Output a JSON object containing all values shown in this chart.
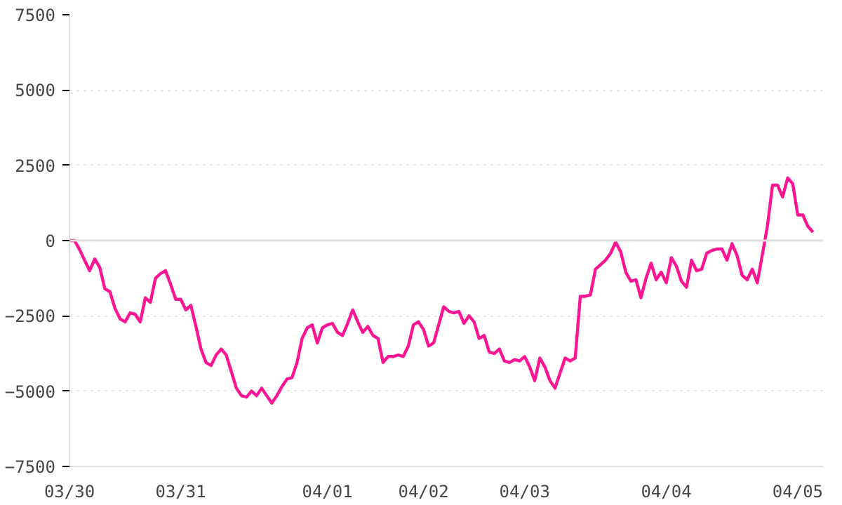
{
  "chart_data": {
    "type": "line",
    "categories": [
      "03/30",
      null,
      null,
      null,
      null,
      null,
      null,
      null,
      null,
      null,
      null,
      null,
      null,
      null,
      null,
      null,
      null,
      null,
      null,
      null,
      null,
      null,
      "03/31",
      null,
      null,
      null,
      null,
      null,
      null,
      null,
      null,
      null,
      null,
      null,
      null,
      null,
      null,
      null,
      null,
      null,
      null,
      null,
      null,
      null,
      null,
      null,
      null,
      null,
      null,
      null,
      null,
      "04/01",
      null,
      null,
      null,
      null,
      null,
      null,
      null,
      null,
      null,
      null,
      null,
      null,
      null,
      null,
      null,
      null,
      null,
      null,
      "04/02",
      null,
      null,
      null,
      null,
      null,
      null,
      null,
      null,
      null,
      null,
      null,
      null,
      null,
      null,
      null,
      null,
      null,
      null,
      null,
      "04/03",
      null,
      null,
      null,
      null,
      null,
      null,
      null,
      null,
      null,
      null,
      null,
      null,
      null,
      null,
      null,
      null,
      null,
      null,
      null,
      null,
      null,
      null,
      null,
      null,
      null,
      null,
      null,
      "04/04",
      null,
      null,
      null,
      null,
      null,
      null,
      null,
      null,
      null,
      null,
      null,
      null,
      null,
      null,
      null,
      null,
      null,
      null,
      null,
      null,
      null,
      null,
      null,
      null,
      null,
      "04/05",
      null,
      null,
      null
    ],
    "series": [
      {
        "color": "#ff1493",
        "values": [
          0,
          0,
          -300,
          -660,
          -1000,
          -610,
          -900,
          -1600,
          -1700,
          -2250,
          -2600,
          -2700,
          -2400,
          -2450,
          -2700,
          -1900,
          -2050,
          -1250,
          -1100,
          -1000,
          -1450,
          -1950,
          -1950,
          -2300,
          -2150,
          -2850,
          -3600,
          -4050,
          -4150,
          -3800,
          -3600,
          -3800,
          -4350,
          -4900,
          -5150,
          -5200,
          -5000,
          -5150,
          -4900,
          -5150,
          -5400,
          -5150,
          -4850,
          -4600,
          -4550,
          -4050,
          -3250,
          -2900,
          -2800,
          -3400,
          -2900,
          -2800,
          -2750,
          -3050,
          -3150,
          -2750,
          -2300,
          -2700,
          -3050,
          -2850,
          -3150,
          -3250,
          -4050,
          -3850,
          -3850,
          -3800,
          -3850,
          -3500,
          -2800,
          -2700,
          -2950,
          -3500,
          -3400,
          -2800,
          -2200,
          -2350,
          -2400,
          -2350,
          -2750,
          -2500,
          -2700,
          -3250,
          -3150,
          -3700,
          -3750,
          -3600,
          -4000,
          -4050,
          -3950,
          -4000,
          -3850,
          -4200,
          -4650,
          -3900,
          -4200,
          -4650,
          -4900,
          -4400,
          -3900,
          -4000,
          -3900,
          -1850,
          -1850,
          -1800,
          -950,
          -800,
          -650,
          -420,
          -50,
          -380,
          -1050,
          -1350,
          -1300,
          -1900,
          -1250,
          -750,
          -1300,
          -1050,
          -1400,
          -570,
          -850,
          -1350,
          -1550,
          -650,
          -1000,
          -950,
          -420,
          -330,
          -280,
          -280,
          -650,
          -100,
          -500,
          -1150,
          -1300,
          -950,
          -1400,
          -470,
          480,
          1840,
          1840,
          1450,
          2080,
          1890,
          850,
          850,
          470,
          280
        ]
      }
    ],
    "ylim": [
      -7500,
      7500
    ],
    "yticks": [
      -7500,
      -5000,
      -2500,
      0,
      2500,
      5000,
      7500
    ],
    "ref_lines": [
      {
        "axis": "y",
        "value": 0,
        "color": "#dddddd"
      }
    ],
    "grid": "y",
    "marker": "none",
    "line_style": "solid"
  }
}
